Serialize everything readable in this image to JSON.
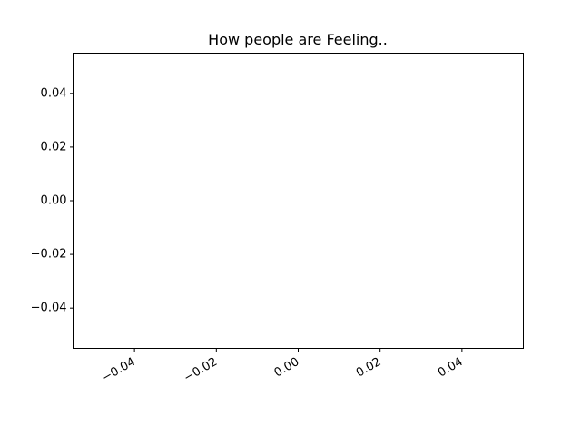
{
  "chart_data": {
    "type": "line",
    "title": "How people are Feeling..",
    "xlabel": "",
    "ylabel": "",
    "xlim": [
      -0.055,
      0.055
    ],
    "ylim": [
      -0.055,
      0.055
    ],
    "x_ticks": [
      -0.04,
      -0.02,
      0.0,
      0.02,
      0.04
    ],
    "y_ticks": [
      -0.04,
      -0.02,
      0.0,
      0.02,
      0.04
    ],
    "x_tick_labels": [
      "−0.04",
      "−0.02",
      "0.00",
      "0.02",
      "0.04"
    ],
    "y_tick_labels": [
      "−0.04",
      "−0.02",
      "0.00",
      "0.02",
      "0.04"
    ],
    "x_tick_rotation_deg": 30,
    "grid": false,
    "legend": "none",
    "series": [],
    "colors": {
      "axes": "#000000",
      "background": "#ffffff"
    }
  }
}
